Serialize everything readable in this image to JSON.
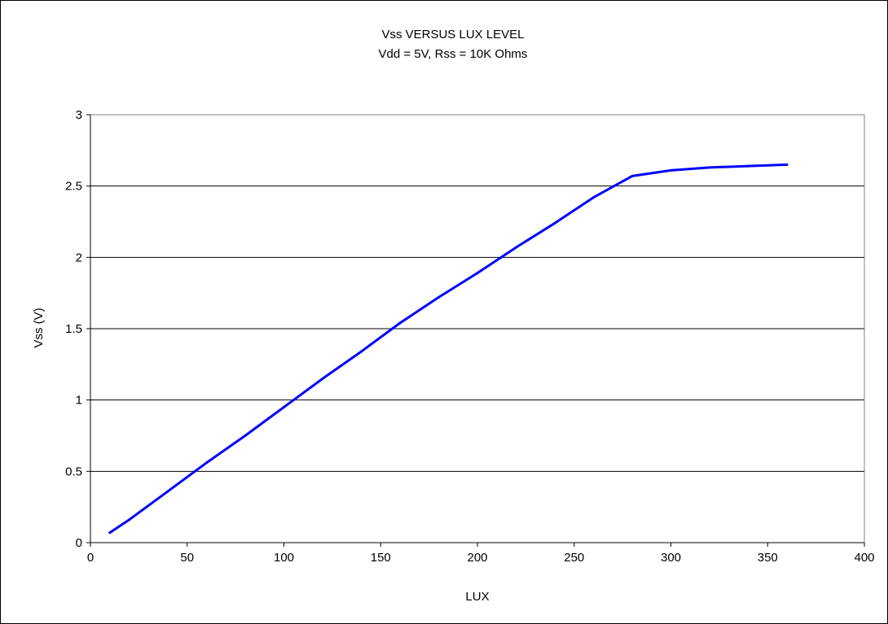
{
  "chart_data": {
    "type": "line",
    "title": "Vss VERSUS LUX LEVEL",
    "subtitle": "Vdd = 5V, Rss = 10K Ohms",
    "xlabel": "LUX",
    "ylabel": "Vss (V)",
    "xlim": [
      0,
      400
    ],
    "ylim": [
      0,
      3
    ],
    "xticks": [
      "0",
      "50",
      "100",
      "150",
      "200",
      "250",
      "300",
      "350",
      "400"
    ],
    "yticks": [
      "0",
      "0.5",
      "1",
      "1.5",
      "2",
      "2.5",
      "3"
    ],
    "grid": "horizontal",
    "legend": "none",
    "series": [
      {
        "color": "#0000ff",
        "points": [
          {
            "x": 10,
            "y": 0.07
          },
          {
            "x": 20,
            "y": 0.16
          },
          {
            "x": 40,
            "y": 0.36
          },
          {
            "x": 60,
            "y": 0.56
          },
          {
            "x": 80,
            "y": 0.75
          },
          {
            "x": 100,
            "y": 0.95
          },
          {
            "x": 120,
            "y": 1.15
          },
          {
            "x": 140,
            "y": 1.34
          },
          {
            "x": 160,
            "y": 1.54
          },
          {
            "x": 180,
            "y": 1.72
          },
          {
            "x": 200,
            "y": 1.89
          },
          {
            "x": 220,
            "y": 2.07
          },
          {
            "x": 240,
            "y": 2.24
          },
          {
            "x": 260,
            "y": 2.42
          },
          {
            "x": 280,
            "y": 2.57
          },
          {
            "x": 300,
            "y": 2.61
          },
          {
            "x": 320,
            "y": 2.63
          },
          {
            "x": 340,
            "y": 2.64
          },
          {
            "x": 360,
            "y": 2.65
          }
        ]
      }
    ]
  }
}
